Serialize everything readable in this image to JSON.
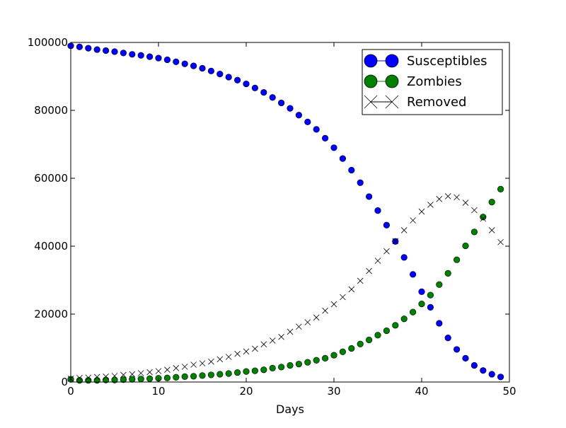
{
  "chart_data": {
    "type": "scatter",
    "title": "",
    "xlabel": "Days",
    "ylabel": "",
    "xlim": [
      0,
      50
    ],
    "ylim": [
      0,
      100000
    ],
    "xticks": [
      0,
      10,
      20,
      30,
      40,
      50
    ],
    "xtick_labels": [
      "0",
      "10",
      "20",
      "30",
      "40",
      "50"
    ],
    "yticks": [
      0,
      20000,
      40000,
      60000,
      80000,
      100000
    ],
    "ytick_labels": [
      "0",
      "20000",
      "40000",
      "60000",
      "80000",
      "100000"
    ],
    "grid": false,
    "legend_position": "top-right",
    "x": [
      0,
      1,
      2,
      3,
      4,
      5,
      6,
      7,
      8,
      9,
      10,
      11,
      12,
      13,
      14,
      15,
      16,
      17,
      18,
      19,
      20,
      21,
      22,
      23,
      24,
      25,
      26,
      27,
      28,
      29,
      30,
      31,
      32,
      33,
      34,
      35,
      36,
      37,
      38,
      39,
      40,
      41,
      42,
      43,
      44,
      45,
      46,
      47,
      48,
      49
    ],
    "series": [
      {
        "name": "Susceptibles",
        "marker": "circle",
        "color": "#0000ff",
        "values": [
          99000,
          98700,
          98300,
          97900,
          97600,
          97300,
          96900,
          96500,
          96200,
          95800,
          95400,
          94900,
          94300,
          93700,
          93100,
          92400,
          91600,
          90700,
          89800,
          88900,
          87800,
          86600,
          85300,
          83800,
          82200,
          80600,
          78600,
          76600,
          74400,
          71800,
          69000,
          65800,
          62400,
          58700,
          54600,
          50500,
          46200,
          41400,
          36700,
          31700,
          26600,
          22000,
          17300,
          13000,
          9600,
          7000,
          4900,
          3400,
          2300,
          1500
        ]
      },
      {
        "name": "Zombies",
        "marker": "circle",
        "color": "#008000",
        "values": [
          800,
          500,
          500,
          500,
          600,
          600,
          700,
          800,
          900,
          1000,
          1100,
          1200,
          1400,
          1600,
          1700,
          1900,
          2100,
          2300,
          2500,
          2800,
          3100,
          3300,
          3600,
          4100,
          4400,
          4900,
          5300,
          5800,
          6400,
          7000,
          7900,
          8900,
          9900,
          11200,
          12400,
          13800,
          15100,
          16700,
          18600,
          20600,
          23000,
          25600,
          28700,
          32000,
          36000,
          40100,
          44200,
          48600,
          53000,
          56800
        ]
      },
      {
        "name": "Removed",
        "marker": "x",
        "color": "#000000",
        "values": [
          1000,
          1200,
          1300,
          1500,
          1600,
          1800,
          2100,
          2300,
          2600,
          2900,
          3200,
          3600,
          4100,
          4500,
          5100,
          5500,
          6000,
          6700,
          7400,
          8300,
          9000,
          9800,
          11100,
          12200,
          13300,
          14800,
          16300,
          17600,
          19000,
          21000,
          22900,
          25000,
          27300,
          29800,
          32700,
          35700,
          38500,
          41500,
          44700,
          47600,
          50200,
          52200,
          53900,
          54700,
          54400,
          52800,
          50600,
          48100,
          44700,
          41200
        ]
      }
    ]
  }
}
